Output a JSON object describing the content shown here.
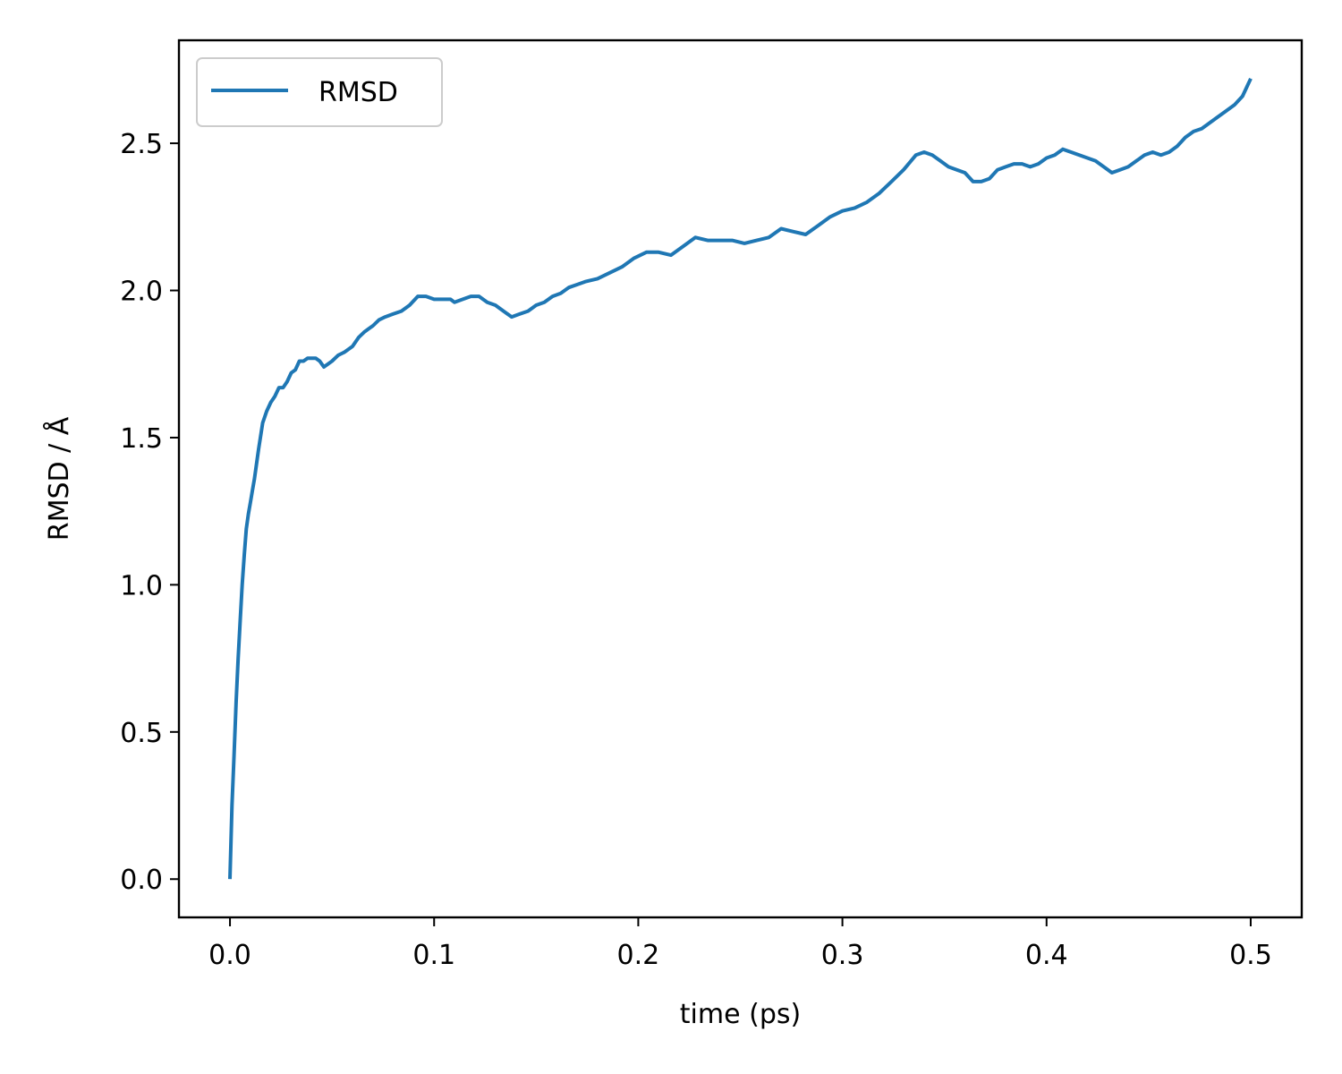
{
  "chart_data": {
    "type": "line",
    "xlabel": "time (ps)",
    "ylabel": "RMSD / Å",
    "xlim": [
      -0.025,
      0.525
    ],
    "ylim": [
      -0.13,
      2.85
    ],
    "xticks": [
      {
        "value": 0.0,
        "label": "0.0"
      },
      {
        "value": 0.1,
        "label": "0.1"
      },
      {
        "value": 0.2,
        "label": "0.2"
      },
      {
        "value": 0.3,
        "label": "0.3"
      },
      {
        "value": 0.4,
        "label": "0.4"
      },
      {
        "value": 0.5,
        "label": "0.5"
      }
    ],
    "yticks": [
      {
        "value": 0.0,
        "label": "0.0"
      },
      {
        "value": 0.5,
        "label": "0.5"
      },
      {
        "value": 1.0,
        "label": "1.0"
      },
      {
        "value": 1.5,
        "label": "1.5"
      },
      {
        "value": 2.0,
        "label": "2.0"
      },
      {
        "value": 2.5,
        "label": "2.5"
      }
    ],
    "grid": false,
    "legend": {
      "position": "top-left"
    },
    "series": [
      {
        "name": "RMSD",
        "color": "#1f77b4",
        "x": [
          0.0,
          0.001,
          0.002,
          0.003,
          0.004,
          0.005,
          0.006,
          0.007,
          0.008,
          0.009,
          0.01,
          0.011,
          0.012,
          0.014,
          0.016,
          0.018,
          0.02,
          0.022,
          0.024,
          0.026,
          0.028,
          0.03,
          0.032,
          0.034,
          0.036,
          0.038,
          0.04,
          0.042,
          0.044,
          0.046,
          0.048,
          0.05,
          0.053,
          0.056,
          0.06,
          0.063,
          0.066,
          0.068,
          0.07,
          0.073,
          0.076,
          0.08,
          0.084,
          0.088,
          0.092,
          0.096,
          0.1,
          0.104,
          0.108,
          0.11,
          0.114,
          0.118,
          0.122,
          0.126,
          0.13,
          0.134,
          0.138,
          0.142,
          0.146,
          0.15,
          0.154,
          0.158,
          0.162,
          0.166,
          0.17,
          0.174,
          0.18,
          0.186,
          0.192,
          0.198,
          0.204,
          0.21,
          0.216,
          0.222,
          0.228,
          0.234,
          0.24,
          0.246,
          0.252,
          0.258,
          0.264,
          0.27,
          0.276,
          0.282,
          0.288,
          0.294,
          0.3,
          0.306,
          0.312,
          0.318,
          0.324,
          0.33,
          0.336,
          0.34,
          0.344,
          0.348,
          0.352,
          0.356,
          0.36,
          0.364,
          0.368,
          0.372,
          0.376,
          0.38,
          0.384,
          0.388,
          0.392,
          0.396,
          0.4,
          0.404,
          0.408,
          0.412,
          0.416,
          0.42,
          0.424,
          0.428,
          0.432,
          0.436,
          0.44,
          0.444,
          0.448,
          0.452,
          0.456,
          0.46,
          0.464,
          0.468,
          0.472,
          0.476,
          0.48,
          0.484,
          0.488,
          0.492,
          0.496,
          0.5
        ],
        "y": [
          0.0,
          0.25,
          0.42,
          0.6,
          0.75,
          0.88,
          1.0,
          1.1,
          1.19,
          1.24,
          1.28,
          1.32,
          1.36,
          1.46,
          1.55,
          1.59,
          1.62,
          1.64,
          1.67,
          1.67,
          1.69,
          1.72,
          1.73,
          1.76,
          1.76,
          1.77,
          1.77,
          1.77,
          1.76,
          1.74,
          1.75,
          1.76,
          1.78,
          1.79,
          1.81,
          1.84,
          1.86,
          1.87,
          1.88,
          1.9,
          1.91,
          1.92,
          1.93,
          1.95,
          1.98,
          1.98,
          1.97,
          1.97,
          1.97,
          1.96,
          1.97,
          1.98,
          1.98,
          1.96,
          1.95,
          1.93,
          1.91,
          1.92,
          1.93,
          1.95,
          1.96,
          1.98,
          1.99,
          2.01,
          2.02,
          2.03,
          2.04,
          2.06,
          2.08,
          2.11,
          2.13,
          2.13,
          2.12,
          2.15,
          2.18,
          2.17,
          2.17,
          2.17,
          2.16,
          2.17,
          2.18,
          2.21,
          2.2,
          2.19,
          2.22,
          2.25,
          2.27,
          2.28,
          2.3,
          2.33,
          2.37,
          2.41,
          2.46,
          2.47,
          2.46,
          2.44,
          2.42,
          2.41,
          2.4,
          2.37,
          2.37,
          2.38,
          2.41,
          2.42,
          2.43,
          2.43,
          2.42,
          2.43,
          2.45,
          2.46,
          2.48,
          2.47,
          2.46,
          2.45,
          2.44,
          2.42,
          2.4,
          2.41,
          2.42,
          2.44,
          2.46,
          2.47,
          2.46,
          2.47,
          2.49,
          2.52,
          2.54,
          2.55,
          2.57,
          2.59,
          2.61,
          2.63,
          2.66,
          2.72
        ]
      }
    ]
  }
}
